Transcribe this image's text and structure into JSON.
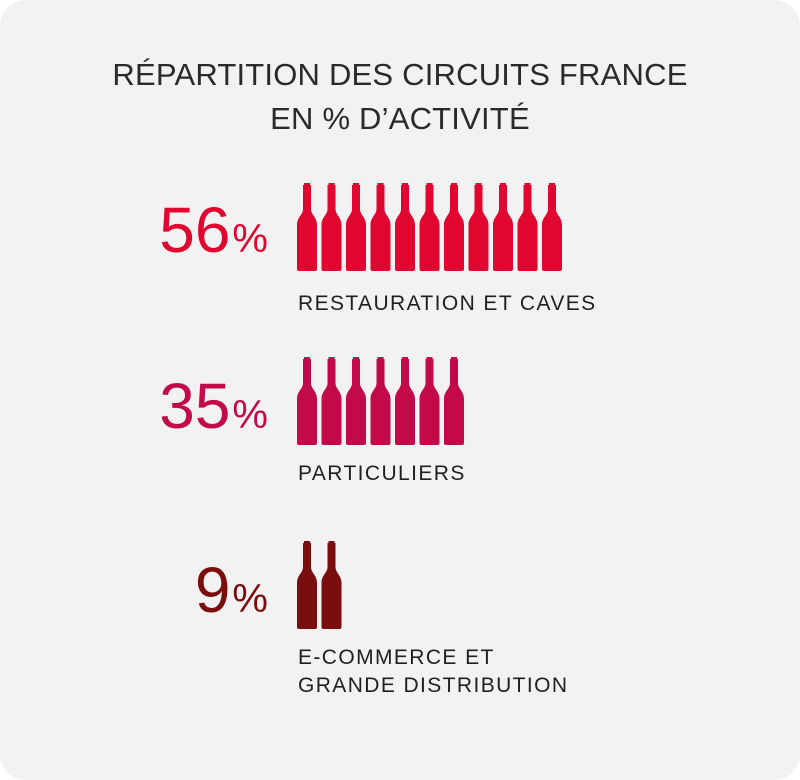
{
  "title_line1": "RÉPARTITION DES CIRCUITS FRANCE",
  "title_line2": "EN % D’ACTIVITÉ",
  "chart_data": {
    "type": "bar",
    "title": "RÉPARTITION DES CIRCUITS FRANCE EN % D’ACTIVITÉ",
    "unit": "%",
    "categories": [
      "RESTAURATION ET CAVES",
      "PARTICULIERS",
      "E-COMMERCE ET GRANDE DISTRIBUTION"
    ],
    "values": [
      56,
      35,
      9
    ],
    "bottles": [
      11,
      7,
      2
    ],
    "colors": [
      "#e0062f",
      "#c20a4a",
      "#7a0d0d"
    ]
  },
  "rows": [
    {
      "num": "56",
      "sign": "%",
      "label1": "RESTAURATION ET CAVES",
      "label2": ""
    },
    {
      "num": "35",
      "sign": "%",
      "label1": "PARTICULIERS",
      "label2": ""
    },
    {
      "num": "9",
      "sign": "%",
      "label1": "E-COMMERCE ET",
      "label2": "GRANDE DISTRIBUTION"
    }
  ]
}
